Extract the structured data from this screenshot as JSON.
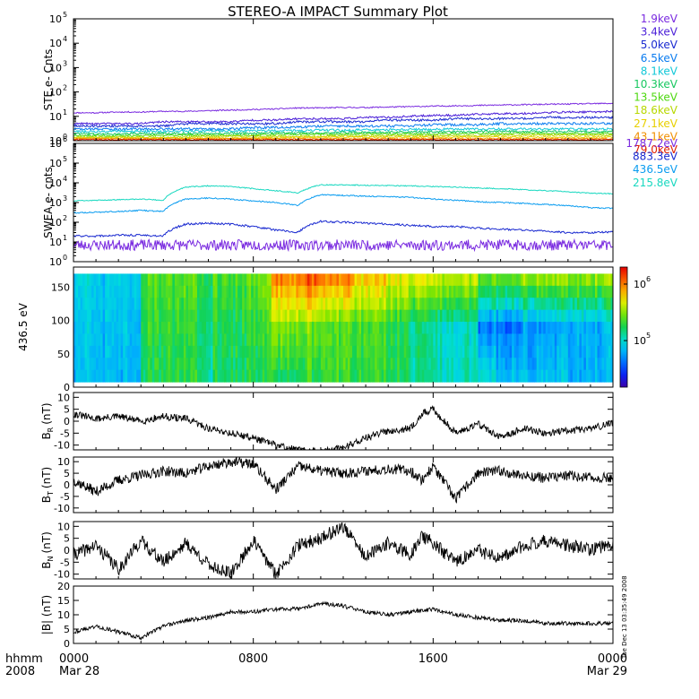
{
  "title": "STEREO-A IMPACT Summary Plot",
  "timestamp_stamp": "Tue Dec 13 03:35:49 2008",
  "x_axis": {
    "ticks": [
      "0000",
      "0800",
      "1600",
      "0000"
    ],
    "tick_hours": [
      0,
      8,
      16,
      24
    ],
    "date_labels": [
      "Mar 28",
      "",
      "",
      "Mar 29"
    ],
    "left_label_top": "hhmm",
    "left_label_bottom": "2008"
  },
  "chart_data": [
    {
      "type": "line",
      "panel": "ste",
      "ylabel": "STE e- Cnts",
      "yscale": "log",
      "ylim": [
        1,
        100000
      ],
      "yticks": [
        {
          "t": "10",
          "e": "0",
          "v": 1
        },
        {
          "t": "10",
          "e": "1",
          "v": 10
        },
        {
          "t": "10",
          "e": "2",
          "v": 100
        },
        {
          "t": "10",
          "e": "3",
          "v": 1000
        },
        {
          "t": "10",
          "e": "4",
          "v": 10000
        },
        {
          "t": "10",
          "e": "5",
          "v": 100000
        }
      ],
      "series": [
        {
          "name": "1.9keV",
          "color": "#7a2be0",
          "values": [
            14,
            14,
            15,
            15,
            16,
            16,
            17,
            18,
            19,
            20,
            22,
            22,
            23,
            23,
            24,
            25,
            26,
            27,
            28,
            29,
            30,
            31,
            32,
            33,
            34
          ]
        },
        {
          "name": "3.4keV",
          "color": "#4b1fd8",
          "values": [
            5,
            5,
            5,
            5,
            6,
            6,
            6,
            6,
            7,
            7,
            8,
            8,
            8,
            9,
            9,
            10,
            11,
            11,
            12,
            13,
            13,
            14,
            15,
            15,
            16
          ]
        },
        {
          "name": "5.0keV",
          "color": "#1a2ad0",
          "values": [
            4,
            4,
            4,
            4,
            4,
            5,
            5,
            5,
            5,
            5,
            6,
            6,
            6,
            6,
            7,
            7,
            7,
            8,
            8,
            8,
            8,
            9,
            9,
            9,
            9
          ]
        },
        {
          "name": "6.5keV",
          "color": "#0a7cf0",
          "values": [
            3,
            3,
            3,
            3,
            3,
            3,
            3,
            3,
            3.5,
            3.5,
            3.5,
            4,
            4,
            4,
            4,
            4,
            4.5,
            4.5,
            4.5,
            5,
            5,
            5,
            5,
            5,
            5
          ]
        },
        {
          "name": "8.1keV",
          "color": "#12c8d8",
          "values": [
            2.4,
            2.4,
            2.4,
            2.4,
            2.4,
            2.5,
            2.5,
            2.5,
            2.6,
            2.6,
            2.6,
            2.7,
            2.7,
            2.8,
            2.8,
            2.9,
            2.9,
            3,
            3,
            3,
            3,
            3,
            3,
            3,
            3
          ]
        },
        {
          "name": "10.3keV",
          "color": "#18c860",
          "values": [
            1.9,
            1.9,
            1.9,
            2,
            2,
            2,
            2,
            2,
            2,
            2.1,
            2.1,
            2.1,
            2.2,
            2.2,
            2.2,
            2.3,
            2.3,
            2.3,
            2.4,
            2.4,
            2.4,
            2.4,
            2.4,
            2.4,
            2.4
          ]
        },
        {
          "name": "13.5keV",
          "color": "#4ed810",
          "values": [
            1.6,
            1.6,
            1.6,
            1.6,
            1.7,
            1.7,
            1.7,
            1.7,
            1.7,
            1.8,
            1.8,
            1.8,
            1.8,
            1.9,
            1.9,
            1.9,
            1.9,
            1.9,
            2,
            2,
            2,
            2,
            2,
            2,
            2
          ]
        },
        {
          "name": "18.6keV",
          "color": "#b8d800",
          "values": [
            1.4,
            1.4,
            1.4,
            1.4,
            1.4,
            1.4,
            1.5,
            1.5,
            1.5,
            1.5,
            1.5,
            1.5,
            1.6,
            1.6,
            1.6,
            1.6,
            1.6,
            1.6,
            1.6,
            1.7,
            1.7,
            1.7,
            1.7,
            1.7,
            1.7
          ]
        },
        {
          "name": "27.1keV",
          "color": "#e8d000",
          "values": [
            1.3,
            1.3,
            1.3,
            1.3,
            1.3,
            1.3,
            1.3,
            1.3,
            1.3,
            1.3,
            1.4,
            1.4,
            1.4,
            1.4,
            1.4,
            1.4,
            1.4,
            1.4,
            1.4,
            1.4,
            1.4,
            1.4,
            1.4,
            1.4,
            1.4
          ]
        },
        {
          "name": "43.1keV",
          "color": "#f09000",
          "values": [
            1.2,
            1.2,
            1.2,
            1.2,
            1.2,
            1.2,
            1.2,
            1.2,
            1.2,
            1.2,
            1.2,
            1.2,
            1.2,
            1.2,
            1.2,
            1.2,
            1.2,
            1.2,
            1.2,
            1.2,
            1.2,
            1.2,
            1.2,
            1.2,
            1.2
          ]
        },
        {
          "name": "79.0keV",
          "color": "#e02000",
          "values": [
            1.1,
            1.1,
            1.1,
            1.1,
            1.1,
            1.1,
            1.1,
            1.1,
            1.1,
            1.1,
            1.1,
            1.1,
            1.1,
            1.1,
            1.1,
            1.1,
            1.1,
            1.1,
            1.1,
            1.1,
            1.1,
            1.1,
            1.1,
            1.1,
            1.1
          ]
        }
      ]
    },
    {
      "type": "line",
      "panel": "swea",
      "ylabel": "SWEA e- cnts",
      "yscale": "log",
      "ylim": [
        1,
        1000000
      ],
      "yticks": [
        {
          "t": "10",
          "e": "0",
          "v": 1
        },
        {
          "t": "10",
          "e": "1",
          "v": 10
        },
        {
          "t": "10",
          "e": "2",
          "v": 100
        },
        {
          "t": "10",
          "e": "3",
          "v": 1000
        },
        {
          "t": "10",
          "e": "4",
          "v": 10000
        },
        {
          "t": "10",
          "e": "5",
          "v": 100000
        },
        {
          "t": "10",
          "e": "6",
          "v": 1000000
        }
      ],
      "series": [
        {
          "name": "1787.2eV",
          "color": "#7a2be0",
          "values": [
            7,
            7,
            7,
            7,
            7,
            7,
            7,
            7,
            7,
            7,
            7,
            7,
            7,
            7,
            7,
            7,
            7,
            7,
            7,
            7,
            7,
            7,
            7,
            7,
            7
          ]
        },
        {
          "name": "883.3eV",
          "color": "#1a2ad0",
          "values": [
            20,
            20,
            22,
            22,
            20,
            80,
            90,
            80,
            60,
            40,
            30,
            110,
            100,
            90,
            80,
            70,
            60,
            60,
            50,
            45,
            40,
            35,
            30,
            30,
            32
          ]
        },
        {
          "name": "436.5eV",
          "color": "#0a9cf0",
          "values": [
            300,
            320,
            350,
            400,
            350,
            1500,
            1700,
            1500,
            1200,
            1000,
            700,
            2500,
            2300,
            2100,
            2000,
            1800,
            1500,
            1300,
            1100,
            1000,
            900,
            800,
            700,
            550,
            500
          ]
        },
        {
          "name": "215.8eV",
          "color": "#18d8c0",
          "values": [
            1200,
            1300,
            1400,
            1500,
            1300,
            6000,
            7000,
            6500,
            5000,
            4000,
            3000,
            8000,
            7800,
            7500,
            7200,
            7000,
            6500,
            6000,
            5500,
            5000,
            4500,
            4000,
            3500,
            3000,
            2800
          ]
        }
      ]
    },
    {
      "type": "heatmap",
      "panel": "pad",
      "ylabel": "436.5 eV",
      "ylim": [
        0,
        180
      ],
      "yticks": [
        "0",
        "50",
        "100",
        "150"
      ],
      "ytick_values": [
        0,
        50,
        100,
        150
      ],
      "colorbar_ticks": [
        {
          "t": "10",
          "e": "5",
          "v": 100000
        },
        {
          "t": "10",
          "e": "6",
          "v": 1000000
        }
      ],
      "colorbar_range": [
        15000,
        2000000
      ],
      "time_segments_hours": [
        0,
        2.8,
        3.0,
        5.0,
        5.2,
        5.8,
        6.2,
        7.0,
        8.2,
        8.8,
        9.0,
        10.0,
        11.0,
        12.5,
        14.0,
        15.0,
        16.0,
        18.0,
        18.8,
        20.0,
        22.0,
        24.0
      ],
      "level_low_angle": [
        0.3,
        0.28,
        0.5,
        0.5,
        0.5,
        0.42,
        0.48,
        0.48,
        0.52,
        0.5,
        0.5,
        0.52,
        0.55,
        0.52,
        0.5,
        0.45,
        0.42,
        0.4,
        0.32,
        0.32,
        0.3
      ],
      "level_mid_angle": [
        0.32,
        0.3,
        0.52,
        0.52,
        0.5,
        0.46,
        0.5,
        0.5,
        0.56,
        0.6,
        0.62,
        0.6,
        0.58,
        0.55,
        0.5,
        0.45,
        0.4,
        0.24,
        0.22,
        0.26,
        0.3
      ],
      "level_high_angle": [
        0.34,
        0.32,
        0.55,
        0.55,
        0.55,
        0.48,
        0.55,
        0.55,
        0.62,
        0.8,
        0.85,
        0.9,
        0.85,
        0.75,
        0.72,
        0.7,
        0.68,
        0.6,
        0.58,
        0.62,
        0.62
      ]
    },
    {
      "type": "line",
      "panel": "br",
      "ylabel_main": "B",
      "ylabel_sub": "R",
      "ylabel_unit": "(nT)",
      "ylim": [
        -12,
        12
      ],
      "yticks": [
        "10",
        "5",
        "0",
        "-5",
        "-10"
      ],
      "ytick_values": [
        10,
        5,
        0,
        -5,
        -10
      ],
      "x_hours": [
        0,
        1,
        2,
        3,
        4,
        5,
        6,
        7,
        8,
        9,
        10,
        11,
        12,
        13,
        14,
        15,
        15.5,
        16,
        17,
        18,
        19,
        20,
        21,
        22,
        23,
        24
      ],
      "values": [
        3,
        1,
        2,
        0,
        2,
        1,
        -3,
        -5,
        -7,
        -10,
        -12,
        -13,
        -11,
        -7,
        -4,
        -3,
        3,
        5,
        -5,
        -1,
        -7,
        -3,
        -5,
        -4,
        -3,
        -1
      ]
    },
    {
      "type": "line",
      "panel": "bt",
      "ylabel_main": "B",
      "ylabel_sub": "T",
      "ylabel_unit": "(nT)",
      "ylim": [
        -12,
        12
      ],
      "yticks": [
        "10",
        "5",
        "0",
        "-5",
        "-10"
      ],
      "ytick_values": [
        10,
        5,
        0,
        -5,
        -10
      ],
      "x_hours": [
        0,
        1,
        2,
        3,
        4,
        5,
        6,
        7,
        8,
        9,
        10,
        11,
        12,
        13,
        14,
        15,
        15.5,
        16,
        17,
        18,
        19,
        20,
        21,
        22,
        23,
        24
      ],
      "values": [
        2,
        -3,
        2,
        4,
        6,
        5,
        8,
        10,
        9,
        -2,
        8,
        6,
        5,
        6,
        7,
        6,
        2,
        8,
        -6,
        5,
        6,
        4,
        3,
        4,
        3,
        3
      ]
    },
    {
      "type": "line",
      "panel": "bn",
      "ylabel_main": "B",
      "ylabel_sub": "N",
      "ylabel_unit": "(nT)",
      "ylim": [
        -12,
        12
      ],
      "yticks": [
        "10",
        "5",
        "0",
        "-5",
        "-10"
      ],
      "ytick_values": [
        10,
        5,
        0,
        -5,
        -10
      ],
      "x_hours": [
        0,
        1,
        2,
        3,
        4,
        5,
        6,
        7,
        8,
        9,
        10,
        11,
        12,
        13,
        14,
        15,
        15.5,
        16,
        17,
        18,
        19,
        20,
        21,
        22,
        23,
        24
      ],
      "values": [
        -2,
        2,
        -8,
        4,
        -5,
        3,
        -6,
        -10,
        4,
        -10,
        2,
        5,
        10,
        -3,
        3,
        -2,
        6,
        3,
        -5,
        0,
        -4,
        2,
        4,
        2,
        0,
        3
      ]
    },
    {
      "type": "line",
      "panel": "bmag",
      "ylabel": "|B| (nT)",
      "ylim": [
        0,
        20
      ],
      "yticks": [
        "20",
        "15",
        "10",
        "5",
        "0"
      ],
      "ytick_values": [
        20,
        15,
        10,
        5,
        0
      ],
      "x_hours": [
        0,
        1,
        2,
        3,
        4,
        5,
        6,
        7,
        8,
        9,
        10,
        11,
        12,
        13,
        14,
        15,
        16,
        17,
        18,
        19,
        20,
        21,
        22,
        23,
        24
      ],
      "values": [
        4,
        6,
        4,
        2,
        6,
        8,
        9,
        11,
        11,
        12,
        12,
        14,
        13,
        11,
        10,
        11,
        12,
        10,
        9,
        8,
        8,
        7,
        7,
        7,
        7
      ]
    }
  ]
}
